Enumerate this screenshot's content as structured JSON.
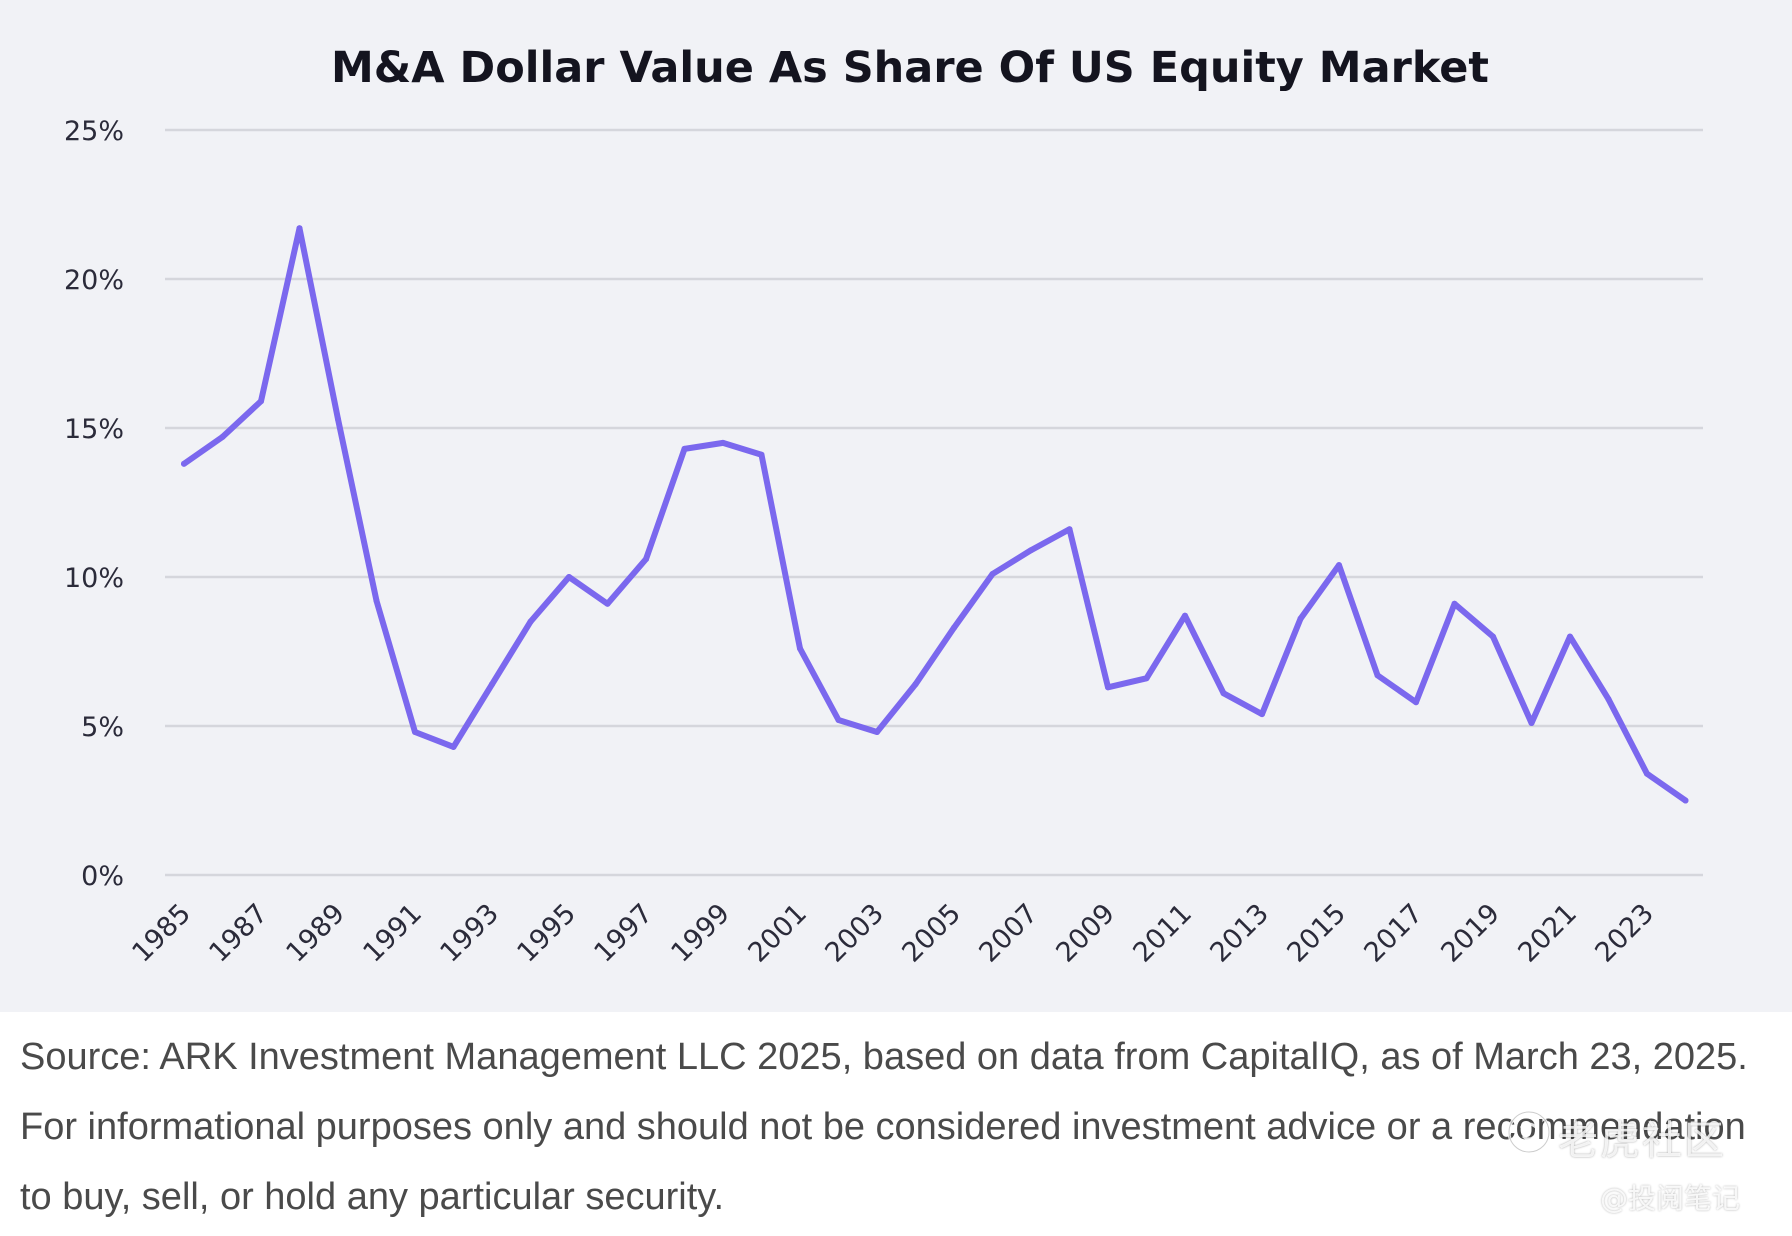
{
  "chart_data": {
    "type": "line",
    "title": "M&A Dollar Value As Share Of US Equity Market",
    "xlabel": "",
    "ylabel": "",
    "x": [
      1985,
      1986,
      1987,
      1988,
      1989,
      1990,
      1991,
      1992,
      1993,
      1994,
      1995,
      1996,
      1997,
      1998,
      1999,
      2000,
      2001,
      2002,
      2003,
      2004,
      2005,
      2006,
      2007,
      2008,
      2009,
      2010,
      2011,
      2012,
      2013,
      2014,
      2015,
      2016,
      2017,
      2018,
      2019,
      2020,
      2021,
      2022,
      2023,
      2024
    ],
    "x_tick_labels": [
      "1985",
      "1987",
      "1989",
      "1991",
      "1993",
      "1995",
      "1997",
      "1999",
      "2001",
      "2003",
      "2005",
      "2007",
      "2009",
      "2011",
      "2013",
      "2015",
      "2017",
      "2019",
      "2021",
      "2023"
    ],
    "series": [
      {
        "name": "",
        "color": "#7b68ee",
        "values": [
          13.8,
          14.7,
          15.9,
          21.7,
          15.3,
          9.2,
          4.8,
          4.3,
          6.4,
          8.5,
          10.0,
          9.1,
          10.6,
          14.3,
          14.5,
          14.1,
          7.6,
          5.2,
          4.8,
          6.4,
          8.3,
          10.1,
          10.9,
          11.6,
          6.3,
          6.6,
          8.7,
          6.1,
          5.4,
          8.6,
          10.4,
          6.7,
          5.8,
          9.1,
          8.0,
          5.1,
          8.0,
          5.9,
          3.4,
          2.5
        ]
      }
    ],
    "ylim": [
      0,
      25
    ],
    "y_ticks": [
      0,
      5,
      10,
      15,
      20,
      25
    ],
    "y_tick_labels": [
      "0%",
      "5%",
      "10%",
      "15%",
      "20%",
      "25%"
    ],
    "grid": true,
    "legend": "none"
  },
  "source_note": "Source: ARK Investment Management LLC 2025, based on data from CapitalIQ, as of March 23, 2025. For informational purposes only and should not be considered investment advice or a recommendation to buy, sell, or hold any particular security.",
  "watermark": {
    "main": "老虎社区",
    "sub": "@投阅笔记"
  },
  "colors": {
    "panel_background": "#f1f2f6",
    "gridline": "#d5d6dc",
    "line": "#7b68ee",
    "text": "#2b2b3a"
  }
}
